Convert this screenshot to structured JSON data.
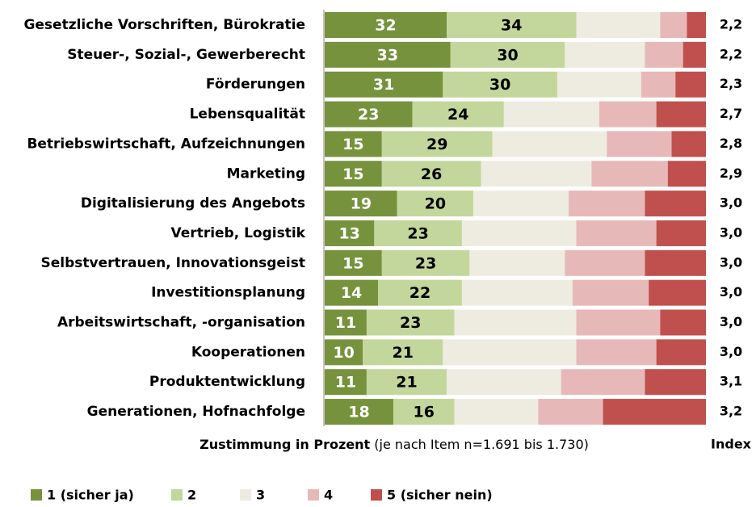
{
  "chart_data": {
    "type": "stacked_bar_horizontal",
    "categories": [
      "Gesetzliche Vorschriften, Bürokratie",
      "Steuer-, Sozial-, Gewerberecht",
      "Förderungen",
      "Lebensqualität",
      "Betriebswirtschaft, Aufzeichnungen",
      "Marketing",
      "Digitalisierung des Angebots",
      "Vertrieb, Logistik",
      "Selbstvertrauen, Innovationsgeist",
      "Investitionsplanung",
      "Arbeitswirtschaft, -organisation",
      "Kooperationen",
      "Produktentwicklung",
      "Generationen, Hofnachfolge"
    ],
    "series": [
      {
        "name": "1 (sicher ja)",
        "color": "#76923c",
        "label_color": "#ffffff",
        "labels": true,
        "values": [
          32,
          33,
          31,
          23,
          15,
          15,
          19,
          13,
          15,
          14,
          11,
          10,
          11,
          18
        ]
      },
      {
        "name": "2",
        "color": "#c3d69b",
        "label_color": "#000000",
        "labels": true,
        "values": [
          34,
          30,
          30,
          24,
          29,
          26,
          20,
          23,
          23,
          22,
          23,
          21,
          21,
          16
        ]
      },
      {
        "name": "3",
        "color": "#eeece1",
        "labels": false,
        "values": [
          22,
          21,
          22,
          25,
          30,
          29,
          25,
          30,
          25,
          29,
          32,
          35,
          30,
          22
        ]
      },
      {
        "name": "4",
        "color": "#e6b9b8",
        "labels": false,
        "values": [
          7,
          10,
          9,
          15,
          17,
          20,
          20,
          21,
          21,
          20,
          22,
          21,
          22,
          17
        ]
      },
      {
        "name": "5 (sicher nein)",
        "color": "#c0504d",
        "labels": false,
        "values": [
          5,
          6,
          8,
          13,
          9,
          10,
          16,
          13,
          16,
          15,
          12,
          13,
          16,
          27
        ]
      }
    ],
    "index": {
      "name": "Index",
      "values": [
        2.2,
        2.2,
        2.3,
        2.7,
        2.8,
        2.9,
        3.0,
        3.0,
        3.0,
        3.0,
        3.0,
        3.0,
        3.1,
        3.2
      ],
      "value_labels": [
        "2,2",
        "2,2",
        "2,3",
        "2,7",
        "2,8",
        "2,9",
        "3,0",
        "3,0",
        "3,0",
        "3,0",
        "3,0",
        "3,0",
        "3,1",
        "3,2"
      ]
    },
    "xlabel": "Zustimmung in Prozent",
    "xlabel_note": "(je nach Item n=1.691 bis 1.730)",
    "xlim": [
      0,
      100
    ]
  }
}
